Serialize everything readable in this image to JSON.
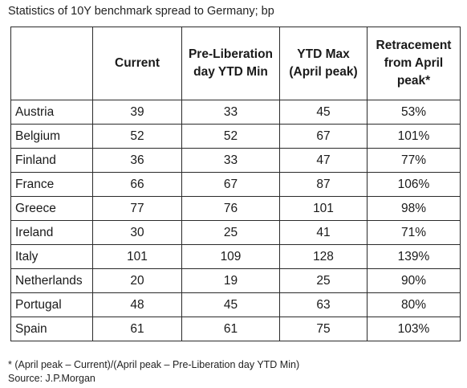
{
  "title": "Statistics of 10Y benchmark spread to Germany; bp",
  "table": {
    "headers": {
      "country": "",
      "current": "Current",
      "pre_liberation": "Pre-Liberation day YTD Min",
      "ytd_max": "YTD Max (April peak)",
      "retracement": "Retracement from April peak*"
    },
    "rows": [
      {
        "country": "Austria",
        "current": "39",
        "pre_liberation": "33",
        "ytd_max": "45",
        "retracement": "53%"
      },
      {
        "country": "Belgium",
        "current": "52",
        "pre_liberation": "52",
        "ytd_max": "67",
        "retracement": "101%"
      },
      {
        "country": "Finland",
        "current": "36",
        "pre_liberation": "33",
        "ytd_max": "47",
        "retracement": "77%"
      },
      {
        "country": "France",
        "current": "66",
        "pre_liberation": "67",
        "ytd_max": "87",
        "retracement": "106%"
      },
      {
        "country": "Greece",
        "current": "77",
        "pre_liberation": "76",
        "ytd_max": "101",
        "retracement": "98%"
      },
      {
        "country": "Ireland",
        "current": "30",
        "pre_liberation": "25",
        "ytd_max": "41",
        "retracement": "71%"
      },
      {
        "country": "Italy",
        "current": "101",
        "pre_liberation": "109",
        "ytd_max": "128",
        "retracement": "139%"
      },
      {
        "country": "Netherlands",
        "current": "20",
        "pre_liberation": "19",
        "ytd_max": "25",
        "retracement": "90%"
      },
      {
        "country": "Portugal",
        "current": "48",
        "pre_liberation": "45",
        "ytd_max": "63",
        "retracement": "80%"
      },
      {
        "country": "Spain",
        "current": "61",
        "pre_liberation": "61",
        "ytd_max": "75",
        "retracement": "103%"
      }
    ]
  },
  "footnote": "* (April peak – Current)/(April peak – Pre-Liberation day YTD Min)",
  "source": "Source: J.P.Morgan"
}
